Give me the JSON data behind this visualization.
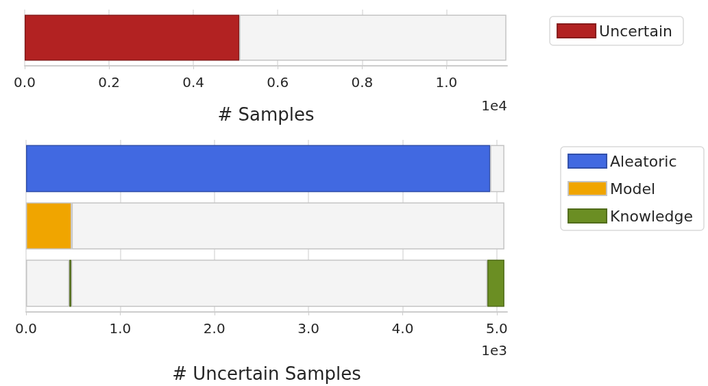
{
  "chart_data": [
    {
      "type": "bar",
      "orientation": "horizontal",
      "stacked": true,
      "categories": [
        null
      ],
      "xlabel": "# Samples",
      "annotations": [
        "1e4"
      ],
      "series": [
        {
          "name": "Uncertain",
          "color": "#b22222",
          "values": [
            0.509
          ]
        },
        {
          "color": "#f4f4f4",
          "values": [
            0.633
          ]
        }
      ],
      "xlim": [
        0,
        1.144
      ],
      "xticks": [
        {
          "value": 0,
          "label": "0.0"
        },
        0.2,
        0.4,
        0.6,
        0.8,
        {
          "value": 1,
          "label": "1.0"
        }
      ],
      "grid": "x",
      "legend": "right",
      "tick_labels": "x"
    },
    {
      "type": "bar",
      "orientation": "horizontal",
      "stacked": true,
      "categories": [
        null,
        null,
        null
      ],
      "xlabel": "# Uncertain Samples",
      "annotations": [
        "1e3"
      ],
      "series": [
        {
          "name": "Aleatoric",
          "color": "#4169e1",
          "values": [
            4.93,
            null,
            null
          ]
        },
        {
          "name": "Model",
          "color": "#f0a500",
          "values": [
            null,
            0.485,
            null
          ]
        },
        {
          "color": "#f4f4f4",
          "values": [
            0.15,
            4.595,
            0.46
          ]
        },
        {
          "name": "Knowledge",
          "color": "#6b8e23",
          "values": [
            null,
            null,
            0.02
          ]
        },
        {
          "color": "#f4f4f4",
          "values": [
            null,
            null,
            4.42
          ]
        },
        {
          "color": "#6b8e23",
          "values": [
            null,
            null,
            0.18
          ]
        }
      ],
      "xlim": [
        0,
        5.11
      ],
      "xticks": [
        {
          "value": 0,
          "label": "0.0"
        },
        {
          "value": 1,
          "label": "1.0"
        },
        {
          "value": 2,
          "label": "2.0"
        },
        {
          "value": 3,
          "label": "3.0"
        },
        {
          "value": 4,
          "label": "4.0"
        },
        {
          "value": 5,
          "label": "5.0"
        }
      ],
      "grid": "x",
      "legend": "right",
      "tick_labels": "x"
    }
  ]
}
